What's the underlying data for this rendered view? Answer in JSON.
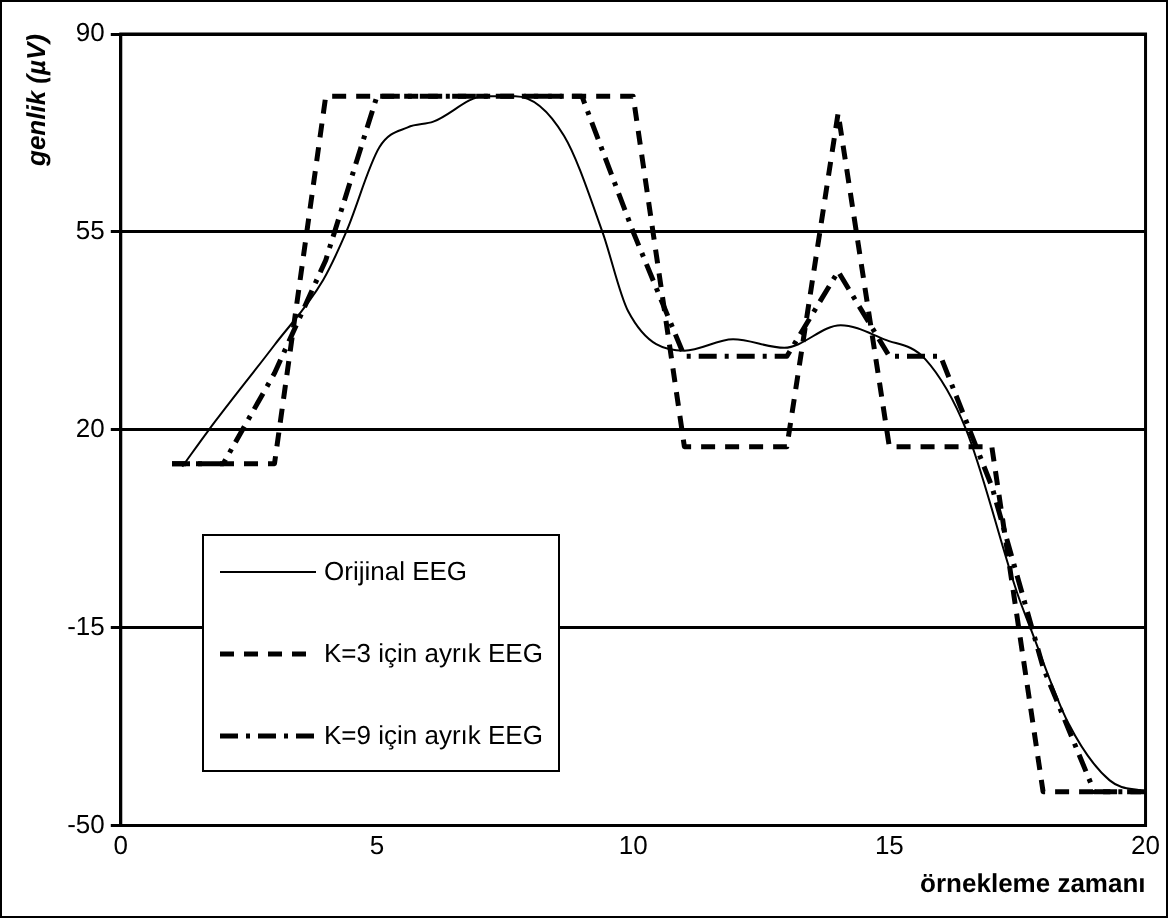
{
  "chart_data": {
    "type": "line",
    "xlabel": "örnekleme zamanı",
    "ylabel": "genlik (µV)",
    "xlim": [
      0,
      20
    ],
    "xticks": [
      0,
      5,
      10,
      15,
      20
    ],
    "ylim": [
      -50,
      90
    ],
    "yticks": [
      -50,
      -15,
      20,
      55,
      90
    ],
    "grid": "y",
    "legend": "bottom left",
    "marker": "none",
    "series": [
      {
        "name": "Orijinal EEG",
        "color": "#000000",
        "line_style": "solid",
        "x": [
          1.2,
          1.72,
          3.0,
          3.95,
          4.4,
          5.05,
          5.6,
          6.1,
          7.1,
          7.7,
          8.65,
          9.4,
          9.9,
          11.0,
          11.95,
          12.95,
          14.05,
          14.9,
          15.7,
          16.5,
          17.5,
          17.75,
          18.5,
          19.3,
          20
        ],
        "values": [
          13.5,
          20,
          35,
          46.5,
          55,
          70,
          73.5,
          74.5,
          79,
          79,
          72,
          55,
          41,
          34,
          36,
          34.5,
          38.5,
          36,
          32.5,
          20,
          -9,
          -15,
          -32,
          -42,
          -44
        ]
      },
      {
        "name": "K=3 için ayrık EEG",
        "color": "#000000",
        "line_style": "dashed",
        "x": [
          1,
          2,
          3,
          4,
          5,
          6,
          7,
          8,
          9,
          10,
          11,
          12,
          13,
          14,
          15,
          16,
          17,
          18,
          19,
          20
        ],
        "values": [
          14,
          14,
          14,
          79,
          79,
          79,
          79,
          79,
          79,
          79,
          17,
          17,
          17,
          76,
          17,
          17,
          17,
          -44,
          -44,
          -44
        ]
      },
      {
        "name": "K=9 için ayrık EEG",
        "color": "#000000",
        "line_style": "dashdot",
        "x": [
          1,
          2,
          3,
          4,
          5,
          6,
          7,
          8,
          9,
          10,
          11,
          12,
          13,
          14,
          15,
          16,
          17,
          18,
          19,
          20
        ],
        "values": [
          14,
          14,
          30,
          50,
          79,
          79,
          79,
          79,
          79,
          55,
          33,
          33,
          33,
          48,
          33,
          33,
          10,
          -22,
          -44,
          -44
        ]
      }
    ]
  }
}
